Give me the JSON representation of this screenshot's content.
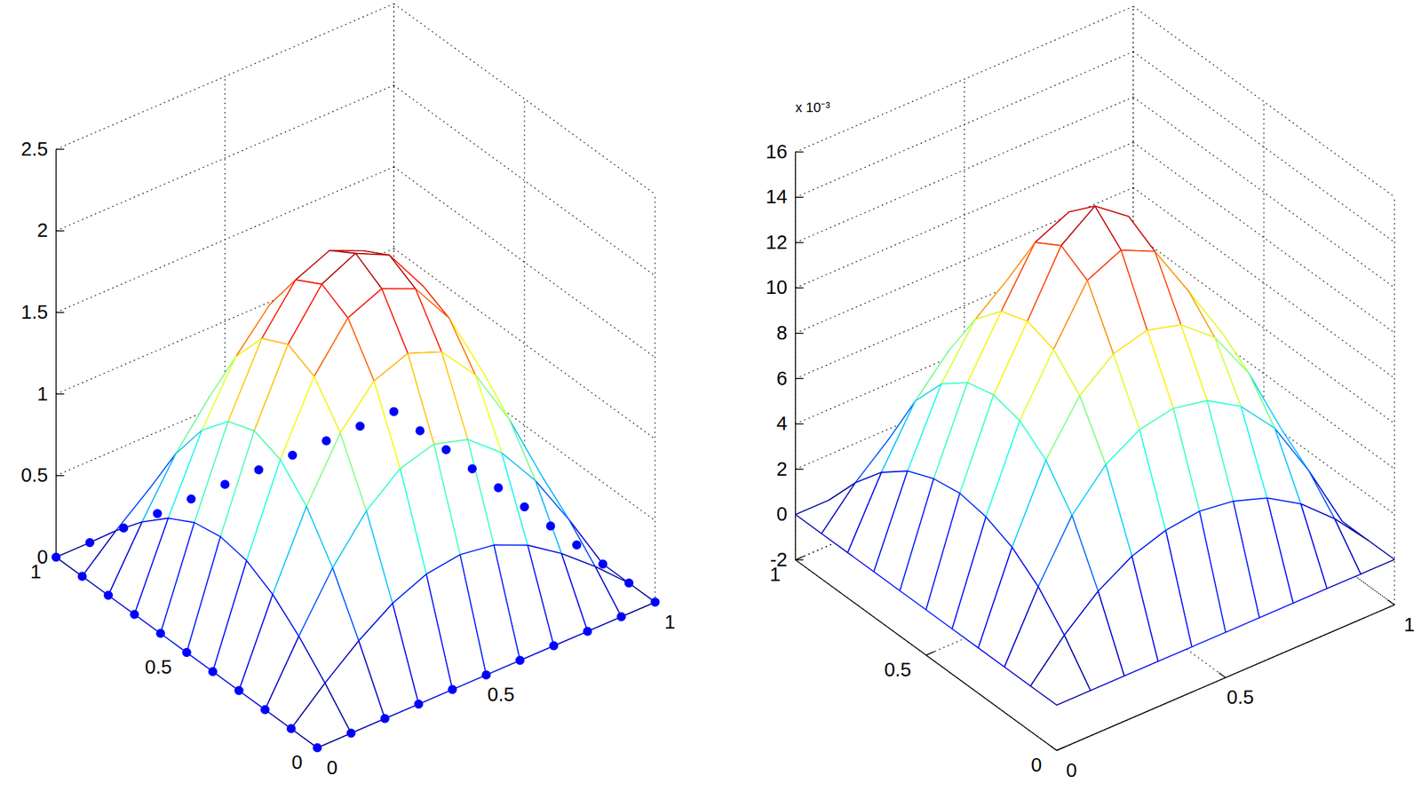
{
  "chart_data": [
    {
      "type": "surface",
      "x": [
        0,
        0.1,
        0.2,
        0.3,
        0.4,
        0.5,
        0.6,
        0.7,
        0.8,
        0.9,
        1
      ],
      "y": [
        0,
        0.1,
        0.2,
        0.3,
        0.4,
        0.5,
        0.6,
        0.7,
        0.8,
        0.9,
        1
      ],
      "z": [
        [
          0,
          0,
          0,
          0,
          0,
          0,
          0,
          0,
          0,
          0,
          0
        ],
        [
          0,
          0.19,
          0.36,
          0.5,
          0.59,
          0.62,
          0.59,
          0.5,
          0.36,
          0.19,
          0
        ],
        [
          0,
          0.36,
          0.69,
          0.95,
          1.12,
          1.18,
          1.12,
          0.95,
          0.69,
          0.36,
          0
        ],
        [
          0,
          0.5,
          0.95,
          1.31,
          1.54,
          1.62,
          1.54,
          1.31,
          0.95,
          0.5,
          0
        ],
        [
          0,
          0.59,
          1.12,
          1.54,
          1.81,
          1.9,
          1.81,
          1.54,
          1.12,
          0.59,
          0
        ],
        [
          0,
          0.62,
          1.18,
          1.62,
          1.9,
          2.0,
          1.9,
          1.62,
          1.18,
          0.62,
          0
        ],
        [
          0,
          0.59,
          1.12,
          1.54,
          1.81,
          1.9,
          1.81,
          1.54,
          1.12,
          0.59,
          0
        ],
        [
          0,
          0.5,
          0.95,
          1.31,
          1.54,
          1.62,
          1.54,
          1.31,
          0.95,
          0.5,
          0
        ],
        [
          0,
          0.36,
          0.69,
          0.95,
          1.12,
          1.18,
          1.12,
          0.95,
          0.69,
          0.36,
          0
        ],
        [
          0,
          0.19,
          0.36,
          0.5,
          0.59,
          0.62,
          0.59,
          0.5,
          0.36,
          0.19,
          0
        ],
        [
          0,
          0,
          0,
          0,
          0,
          0,
          0,
          0,
          0,
          0,
          0
        ]
      ],
      "xlim": [
        0,
        1
      ],
      "ylim": [
        0,
        1
      ],
      "zlim": [
        0,
        2.5
      ],
      "xticks": [
        0,
        0.5,
        1
      ],
      "yticks": [
        0,
        0.5,
        1
      ],
      "zticks": [
        0,
        0.5,
        1,
        1.5,
        2,
        2.5
      ],
      "grid": true,
      "marker": "o",
      "color": "#0000ff"
    },
    {
      "type": "surface",
      "x": [
        0,
        0.1,
        0.2,
        0.3,
        0.4,
        0.5,
        0.6,
        0.7,
        0.8,
        0.9,
        1
      ],
      "y": [
        0,
        0.1,
        0.2,
        0.3,
        0.4,
        0.5,
        0.6,
        0.7,
        0.8,
        0.9,
        1
      ],
      "z": [
        [
          0,
          0,
          0,
          0,
          0,
          0,
          0,
          0,
          0,
          0,
          0
        ],
        [
          0,
          1.6,
          2.9,
          3.8,
          4.3,
          4.5,
          4.3,
          3.8,
          2.9,
          1.6,
          0
        ],
        [
          0,
          2.9,
          5.4,
          7.0,
          7.9,
          8.2,
          7.9,
          7.0,
          5.4,
          2.9,
          0
        ],
        [
          0,
          3.8,
          7.0,
          9.2,
          10.4,
          10.8,
          10.4,
          9.2,
          7.0,
          3.8,
          0
        ],
        [
          0,
          4.3,
          7.9,
          10.4,
          12.8,
          13.5,
          12.8,
          10.4,
          7.9,
          4.3,
          0
        ],
        [
          0,
          4.5,
          8.2,
          10.8,
          13.5,
          14.6,
          13.5,
          10.8,
          8.2,
          4.5,
          0
        ],
        [
          0,
          4.3,
          7.9,
          10.4,
          12.8,
          13.5,
          12.8,
          10.4,
          7.9,
          4.3,
          0
        ],
        [
          0,
          3.8,
          7.0,
          9.2,
          10.4,
          10.8,
          10.4,
          9.2,
          7.0,
          3.8,
          0
        ],
        [
          0,
          2.9,
          5.4,
          7.0,
          7.9,
          8.2,
          7.9,
          7.0,
          5.4,
          2.9,
          0
        ],
        [
          0,
          1.6,
          2.9,
          3.8,
          4.3,
          4.5,
          4.3,
          3.8,
          2.9,
          1.6,
          0
        ],
        [
          0,
          0,
          0,
          0,
          0,
          0,
          0,
          0,
          0,
          0,
          0
        ]
      ],
      "xlim": [
        0,
        1
      ],
      "ylim": [
        0,
        1
      ],
      "zlim": [
        -2,
        16
      ],
      "xticks": [
        0,
        0.5,
        1
      ],
      "yticks": [
        0,
        0.5,
        1
      ],
      "zticks": [
        -2,
        0,
        2,
        4,
        6,
        8,
        10,
        12,
        14,
        16
      ],
      "grid": true,
      "annotations": [
        {
          "text": "x 10⁻³"
        }
      ]
    }
  ]
}
